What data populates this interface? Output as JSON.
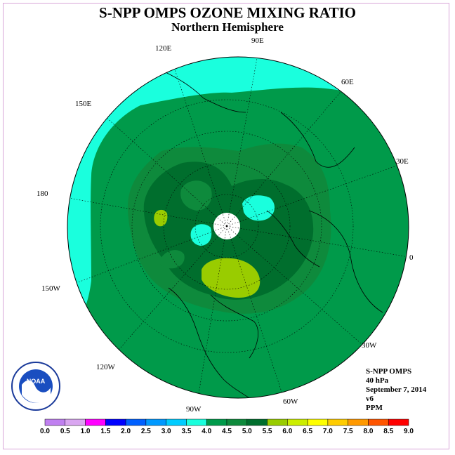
{
  "header": {
    "title": "S-NPP OMPS OZONE MIXING RATIO",
    "subtitle": "Northern Hemisphere"
  },
  "longitude_labels": [
    "90E",
    "60E",
    "30E",
    "0",
    "30W",
    "60W",
    "90W",
    "120W",
    "150W",
    "180",
    "150E",
    "120E"
  ],
  "info_block": {
    "instrument": "S-NPP OMPS",
    "level": "40 hPa",
    "date": "September 7, 2014",
    "version": "v6",
    "units": "PPM"
  },
  "logo": {
    "text": "NOAA",
    "ring_text": "NATIONAL OCEANIC AND ATMOSPHERIC ADMINISTRATION · U.S. DEPARTMENT OF COMMERCE"
  },
  "colorbar": {
    "ticks": [
      "0.0",
      "0.5",
      "1.0",
      "1.5",
      "2.0",
      "2.5",
      "3.0",
      "3.5",
      "4.0",
      "4.5",
      "5.0",
      "5.5",
      "6.0",
      "6.5",
      "7.0",
      "7.5",
      "8.0",
      "8.5",
      "9.0"
    ],
    "colors": [
      "#c080f0",
      "#d9a6f0",
      "#ff00ff",
      "#0000ff",
      "#0060ff",
      "#0099ff",
      "#00ccff",
      "#1affdd",
      "#009a4a",
      "#0e8a3c",
      "#006e2d",
      "#99cc00",
      "#ccee00",
      "#ffff00",
      "#ffcc00",
      "#ff9900",
      "#ff5500",
      "#ff0000",
      "#8b5a2b"
    ]
  },
  "map_colors": {
    "cyan": "#1affdd",
    "mid_blue": "#00ccff",
    "green_45": "#0e8a3c",
    "green_40": "#009a4a",
    "green_50": "#006e2d",
    "yellow_green": "#99cc00",
    "pole": "#ffffff"
  }
}
